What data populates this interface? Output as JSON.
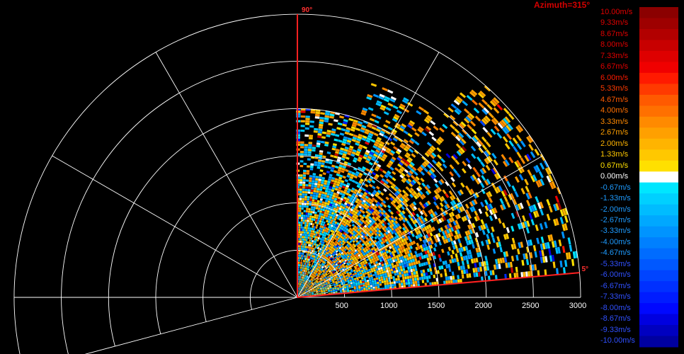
{
  "chart_data": {
    "type": "heatmap",
    "subtype": "polar-sector-velocity-display",
    "title": "Azimuth=315°",
    "elevation_start_label": "90°",
    "elevation_end_label": "5°",
    "elevation_range_deg": [
      5,
      90
    ],
    "range_unit": "m",
    "range_ticks": [
      "500",
      "1000",
      "1500",
      "2000",
      "2500",
      "3000"
    ],
    "range_max": 3000,
    "grid": true,
    "grid_radial_lines_deg": [
      0,
      30,
      60,
      90,
      120,
      150,
      180,
      195
    ],
    "colorbar": {
      "unit": "m/s",
      "min": -10.0,
      "max": 10.0,
      "labels": [
        "10.00m/s",
        "9.33m/s",
        "8.67m/s",
        "8.00m/s",
        "7.33m/s",
        "6.67m/s",
        "6.00m/s",
        "5.33m/s",
        "4.67m/s",
        "4.00m/s",
        "3.33m/s",
        "2.67m/s",
        "2.00m/s",
        "1.33m/s",
        "0.67m/s",
        "0.00m/s",
        "-0.67m/s",
        "-1.33m/s",
        "-2.00m/s",
        "-2.67m/s",
        "-3.33m/s",
        "-4.00m/s",
        "-4.67m/s",
        "-5.33m/s",
        "-6.00m/s",
        "-6.67m/s",
        "-7.33m/s",
        "-8.00m/s",
        "-8.67m/s",
        "-9.33m/s",
        "-10.00m/s"
      ],
      "colors": [
        "#8b0000",
        "#9e0000",
        "#b20000",
        "#c80000",
        "#de0000",
        "#f00000",
        "#ff1a00",
        "#ff3a00",
        "#ff5a00",
        "#ff7000",
        "#ff8a00",
        "#ffa000",
        "#ffb400",
        "#ffc800",
        "#ffe000",
        "#ffffff",
        "#00e6ff",
        "#00d0ff",
        "#00bcff",
        "#00a8ff",
        "#0094ff",
        "#0080ff",
        "#006cff",
        "#0058ff",
        "#0044ff",
        "#0030ff",
        "#001cff",
        "#0008ff",
        "#0000e0",
        "#0000c0",
        "#0000a0"
      ]
    },
    "velocity_pattern": {
      "description_bands": [
        {
          "elevation_deg": [
            60,
            90
          ],
          "range_m": [
            0,
            2000
          ],
          "dominant_velocity_ms": [
            -1.33,
            2.67
          ]
        },
        {
          "elevation_deg": [
            30,
            60
          ],
          "range_m": [
            0,
            2200
          ],
          "dominant_velocity_ms": [
            0.67,
            3.33
          ]
        },
        {
          "elevation_deg": [
            5,
            30
          ],
          "range_m": [
            0,
            3000
          ],
          "dominant_velocity_ms": [
            -2.0,
            2.0
          ]
        }
      ]
    }
  }
}
